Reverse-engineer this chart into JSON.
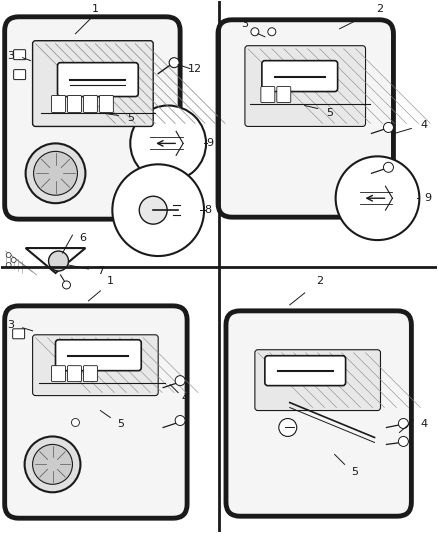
{
  "background_color": "#ffffff",
  "line_color": "#1a1a1a",
  "fig_width": 4.38,
  "fig_height": 5.33,
  "dpi": 100
}
